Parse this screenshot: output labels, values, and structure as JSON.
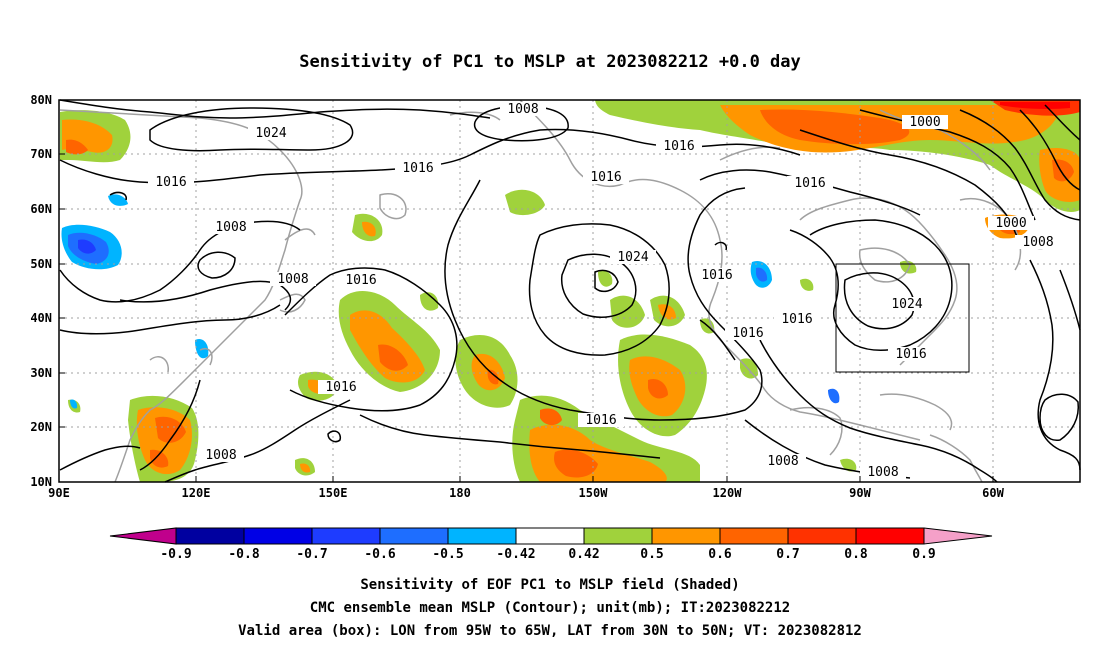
{
  "title": "Sensitivity of PC1 to MSLP at 2023082212 +0.0 day",
  "lat_ticks": [
    "80N",
    "70N",
    "60N",
    "50N",
    "40N",
    "30N",
    "20N",
    "10N"
  ],
  "lon_ticks": [
    "90E",
    "120E",
    "150E",
    "180",
    "150W",
    "120W",
    "90W",
    "60W"
  ],
  "contour_labels": [
    "1008",
    "1024",
    "1016",
    "1016",
    "1016",
    "1016",
    "1000",
    "1008",
    "1016",
    "1000",
    "1008",
    "1024",
    "1008",
    "1008",
    "1016",
    "1016",
    "1024",
    "1016",
    "1016",
    "1016",
    "1016",
    "1016",
    "1008",
    "1008",
    "1008",
    "1016"
  ],
  "colorbar": {
    "labels": [
      "-0.9",
      "-0.8",
      "-0.7",
      "-0.6",
      "-0.5",
      "-0.42",
      "0.42",
      "0.5",
      "0.6",
      "0.7",
      "0.8",
      "0.9"
    ],
    "colors": [
      "#c0008c",
      "#0000a0",
      "#0000e6",
      "#1e3cff",
      "#1e6eff",
      "#00b4ff",
      "#ffffff",
      "#a0d23c",
      "#ff9600",
      "#ff6400",
      "#ff3200",
      "#ff0000",
      "#f5a0c8"
    ]
  },
  "captions": [
    "Sensitivity of EOF PC1 to MSLP field (Shaded)",
    "CMC ensemble mean MSLP (Contour); unit(mb); IT:2023082212",
    "Valid area (box): LON from 95W to 65W, LAT from 30N to 50N; VT: 2023082812"
  ]
}
